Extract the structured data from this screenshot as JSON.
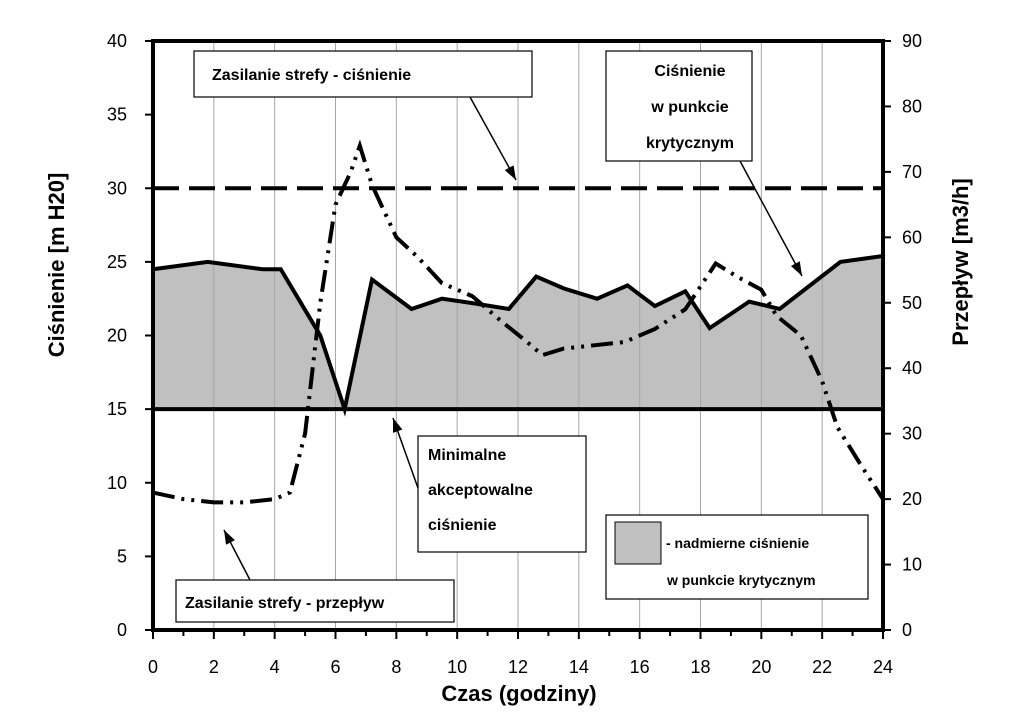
{
  "chart_data": {
    "type": "area",
    "xlabel": "Czas (godziny)",
    "ylabel": "Ciśnienie [m H20]",
    "y2label": "Przepływ [m3/h]",
    "xlim": [
      0,
      24
    ],
    "ylim": [
      0,
      40
    ],
    "y2lim": [
      0,
      90
    ],
    "x_ticks": [
      0,
      2,
      4,
      6,
      8,
      10,
      12,
      14,
      16,
      18,
      20,
      22,
      24
    ],
    "y_ticks": [
      0,
      5,
      10,
      15,
      20,
      25,
      30,
      35,
      40
    ],
    "y2_ticks": [
      0,
      10,
      20,
      30,
      40,
      50,
      60,
      70,
      80,
      90
    ],
    "grid": "vertical",
    "series": [
      {
        "name": "Ciśnienie w punkcie krytycznym",
        "axis": "left",
        "style": "solid-filled",
        "fill_color": "#c0c0c0",
        "baseline": 15,
        "x": [
          0,
          1.8,
          3.6,
          4.2,
          5.5,
          6.3,
          7.2,
          8.5,
          9.5,
          10.5,
          11.7,
          12.6,
          13.5,
          14.6,
          15.6,
          16.5,
          17.5,
          18.3,
          19.6,
          20.6,
          22.6,
          24
        ],
        "y": [
          24.5,
          25,
          24.5,
          24.5,
          20,
          15,
          23.8,
          21.8,
          22.5,
          22.2,
          21.8,
          24,
          23.2,
          22.5,
          23.4,
          22,
          23,
          20.5,
          22.3,
          21.8,
          25,
          25.4
        ]
      },
      {
        "name": "Zasilanie strefy - przepływ",
        "axis": "right",
        "style": "dash-dot-dot",
        "x": [
          0,
          1,
          2,
          3,
          4,
          4.5,
          5,
          5.5,
          6,
          6.5,
          6.8,
          7.2,
          8,
          8.7,
          9.5,
          10.5,
          11.5,
          12.3,
          12.8,
          13.5,
          14.5,
          15.5,
          16.5,
          17.5,
          18.5,
          19.2,
          20,
          20.5,
          21.3,
          22,
          22.5,
          23.3,
          24
        ],
        "y": [
          21,
          20,
          19.5,
          19.5,
          20,
          21,
          30,
          50,
          65,
          70,
          74,
          68,
          60,
          57,
          53,
          51,
          47,
          44,
          42,
          43,
          43.5,
          44,
          46,
          49,
          56,
          54,
          52,
          48,
          45,
          38,
          31,
          25,
          20
        ]
      },
      {
        "name": "Zasilanie strefy - ciśnienie",
        "axis": "left",
        "style": "dashed",
        "x": [
          0,
          24
        ],
        "y": [
          30,
          30
        ]
      },
      {
        "name": "Minimalne akceptowalne ciśnienie",
        "axis": "left",
        "style": "solid",
        "x": [
          0,
          24
        ],
        "y": [
          15,
          15
        ]
      }
    ],
    "annotations": [
      {
        "id": "supply-pressure",
        "lines": [
          "Zasilanie strefy - ciśnienie"
        ]
      },
      {
        "id": "critical-point",
        "lines": [
          "Ciśnienie",
          "w punkcie",
          "krytycznym"
        ]
      },
      {
        "id": "minimal",
        "lines": [
          "Minimalne",
          "akceptowalne",
          "ciśnienie"
        ]
      },
      {
        "id": "supply-flow",
        "lines": [
          "Zasilanie strefy - przepływ"
        ]
      }
    ],
    "legend": {
      "position": "bottom-right",
      "lines": [
        "- nadmierne ciśnienie",
        "w punkcie krytycznym"
      ],
      "swatch_color": "#c0c0c0"
    }
  }
}
